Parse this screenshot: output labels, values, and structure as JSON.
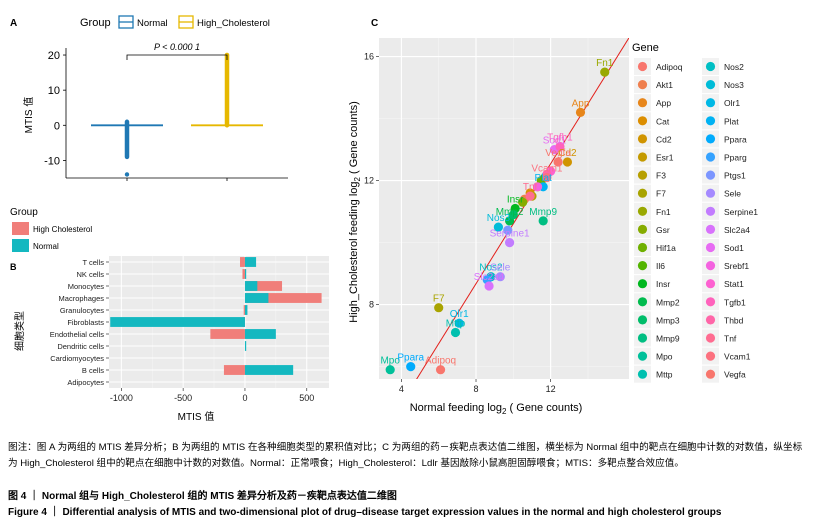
{
  "panelA": {
    "tag": "A",
    "legend_title": "Group",
    "legend_items": [
      {
        "name": "Normal",
        "color": "#1f78b4"
      },
      {
        "name": "High_Cholesterol",
        "color": "#e6b800"
      }
    ],
    "ylabel": "MTIS 值",
    "significance": "P < 0.000 1",
    "chart_data": {
      "type": "boxplot",
      "categories": [
        "Normal",
        "High_Cholesterol"
      ],
      "ylim": [
        -15,
        22
      ],
      "yticks": [
        -10,
        0,
        10,
        20
      ],
      "series": [
        {
          "name": "Normal",
          "median": 0,
          "q1": 0,
          "q3": 0,
          "outliers_min": -9,
          "outliers_max": 1,
          "extreme": -14
        },
        {
          "name": "High_Cholesterol",
          "median": 0,
          "q1": 0,
          "q3": 0,
          "outliers_min": 0,
          "outliers_max": 20,
          "extreme": 20
        }
      ]
    }
  },
  "panelB": {
    "tag": "B",
    "legend_title": "Group",
    "legend_items": [
      {
        "name": "High Cholesterol",
        "color": "#f07e7a"
      },
      {
        "name": "Normal",
        "color": "#14b8c0"
      }
    ],
    "ylabel": "细胞类型",
    "xlabel": "MTIS 值",
    "chart_data": {
      "type": "bar",
      "orientation": "horizontal",
      "categories": [
        "T cells",
        "NK cells",
        "Monocytes",
        "Macrophages",
        "Granulocytes",
        "Fibroblasts",
        "Endothelial cells",
        "Dendritic cells",
        "Cardiomyocytes",
        "B cells",
        "Adipocytes"
      ],
      "xlim": [
        -1100,
        680
      ],
      "xticks": [
        -1000,
        -500,
        0,
        500
      ],
      "xtick_labels": [
        "-1000",
        "-500",
        "0",
        "500"
      ],
      "series": [
        {
          "name": "High Cholesterol",
          "values": [
            -40,
            -20,
            300,
            620,
            -10,
            -20,
            -280,
            0,
            0,
            -170,
            0
          ]
        },
        {
          "name": "Normal",
          "values": [
            90,
            10,
            100,
            190,
            20,
            -1090,
            250,
            10,
            0,
            390,
            0
          ]
        }
      ]
    }
  },
  "panelC": {
    "tag": "C",
    "legend_title": "Gene",
    "xlabel_pre": "Normal feeding log",
    "xlabel_sub": "2",
    "xlabel_post": " ( Gene counts)",
    "ylabel_pre": "High_Cholesterol feeding log",
    "ylabel_sub": "2",
    "ylabel_post": " ( Gene counts)",
    "chart_data": {
      "type": "scatter",
      "xlim": [
        2.8,
        16.2
      ],
      "ylim": [
        5.6,
        16.6
      ],
      "xticks": [
        4,
        8,
        12
      ],
      "yticks": [
        8,
        12,
        16
      ],
      "grid": true,
      "reference_line": "y = x",
      "points": [
        {
          "gene": "Adipoq",
          "x": 6.1,
          "y": 5.9,
          "color": "#f8766d",
          "label": "Adipoq"
        },
        {
          "gene": "Akt1",
          "x": 10.6,
          "y": 11.4,
          "color": "#ef7f4e",
          "label": ""
        },
        {
          "gene": "App",
          "x": 13.6,
          "y": 14.2,
          "color": "#e7861b",
          "label": "App"
        },
        {
          "gene": "Cat",
          "x": 10.9,
          "y": 11.6,
          "color": "#dc8e00",
          "label": ""
        },
        {
          "gene": "Cd2",
          "x": 12.9,
          "y": 12.6,
          "color": "#d09400",
          "label": "Cd2"
        },
        {
          "gene": "Esr1",
          "x": 11.3,
          "y": 11.8,
          "color": "#c49a00",
          "label": ""
        },
        {
          "gene": "F3",
          "x": 11.0,
          "y": 11.5,
          "color": "#b79f00",
          "label": ""
        },
        {
          "gene": "F7",
          "x": 6.0,
          "y": 7.9,
          "color": "#a9a400",
          "label": "F7"
        },
        {
          "gene": "Fn1",
          "x": 14.9,
          "y": 15.5,
          "color": "#99a800",
          "label": "Fn1"
        },
        {
          "gene": "Gsr",
          "x": 10.5,
          "y": 11.3,
          "color": "#86ac00",
          "label": ""
        },
        {
          "gene": "Hif1a",
          "x": 11.5,
          "y": 12.0,
          "color": "#6fb000",
          "label": ""
        },
        {
          "gene": "Il6",
          "x": 11.7,
          "y": 12.1,
          "color": "#53b400",
          "label": ""
        },
        {
          "gene": "Insr",
          "x": 10.1,
          "y": 11.1,
          "color": "#00b81f",
          "label": "Insr"
        },
        {
          "gene": "Mmp2",
          "x": 9.8,
          "y": 10.7,
          "color": "#00bb4e",
          "label": "Mmp2"
        },
        {
          "gene": "Mmp3",
          "x": 10.0,
          "y": 10.9,
          "color": "#00bd6a",
          "label": ""
        },
        {
          "gene": "Mmp9",
          "x": 11.6,
          "y": 10.7,
          "color": "#00be82",
          "label": "Mmp9"
        },
        {
          "gene": "Mpo",
          "x": 3.4,
          "y": 5.9,
          "color": "#00c09a",
          "label": "Mpo"
        },
        {
          "gene": "Mttp",
          "x": 6.9,
          "y": 7.1,
          "color": "#00c0af",
          "label": "Mttp"
        },
        {
          "gene": "Nos2",
          "x": 8.8,
          "y": 8.9,
          "color": "#00bfc4",
          "label": "Nos2"
        },
        {
          "gene": "Nos3",
          "x": 9.2,
          "y": 10.5,
          "color": "#00bcd8",
          "label": "Nos3"
        },
        {
          "gene": "Olr1",
          "x": 7.1,
          "y": 7.4,
          "color": "#00b8e5",
          "label": "Olr1"
        },
        {
          "gene": "Plat",
          "x": 11.6,
          "y": 11.8,
          "color": "#00b2f3",
          "label": "Plat"
        },
        {
          "gene": "Ppara",
          "x": 4.5,
          "y": 6.0,
          "color": "#00abfd",
          "label": "Ppara"
        },
        {
          "gene": "Pparg",
          "x": 8.6,
          "y": 8.8,
          "color": "#35a2ff",
          "label": ""
        },
        {
          "gene": "Ptgs1",
          "x": 9.7,
          "y": 10.4,
          "color": "#7c96ff",
          "label": ""
        },
        {
          "gene": "Sele",
          "x": 9.3,
          "y": 8.9,
          "color": "#a58aff",
          "label": "Sele"
        },
        {
          "gene": "Serpine1",
          "x": 9.8,
          "y": 10.0,
          "color": "#c27cff",
          "label": "Serpine1"
        },
        {
          "gene": "Slc2a4",
          "x": 8.7,
          "y": 8.6,
          "color": "#d872fc",
          "label": "Slc2a4"
        },
        {
          "gene": "Sod1",
          "x": 12.2,
          "y": 13.0,
          "color": "#e76bf3",
          "label": "Sod1"
        },
        {
          "gene": "Srebf1",
          "x": 11.3,
          "y": 11.8,
          "color": "#f463e0",
          "label": ""
        },
        {
          "gene": "Stat1",
          "x": 12.0,
          "y": 12.3,
          "color": "#fd61d1",
          "label": ""
        },
        {
          "gene": "Tgfb1",
          "x": 12.5,
          "y": 13.1,
          "color": "#ff62bc",
          "label": "Tgfb1"
        },
        {
          "gene": "Thbd",
          "x": 11.8,
          "y": 12.2,
          "color": "#ff66a8",
          "label": ""
        },
        {
          "gene": "Tnf",
          "x": 10.9,
          "y": 11.5,
          "color": "#ff6c91",
          "label": "Tnf"
        },
        {
          "gene": "Vcam1",
          "x": 11.8,
          "y": 12.1,
          "color": "#fc717f",
          "label": "Vcam1"
        },
        {
          "gene": "Vegfa",
          "x": 12.4,
          "y": 12.6,
          "color": "#f8766d",
          "label": "Vegfa"
        }
      ]
    }
  },
  "caption": {
    "note": "图注：图 A 为两组的 MTIS 差异分析；B 为两组的 MTIS 在各种细胞类型的累积值对比；C 为两组的药－疾靶点表达值二维图，横坐标为 Normal 组中的靶点在细胞中计数的对数值，纵坐标为 High_Cholesterol 组中的靶点在细胞中计数的对数值。Normal：正常喂食；High_Cholesterol：Ldlr 基因敲除小鼠高胆固醇喂食；MTIS：多靶点整合效应值。",
    "title_zh": "图 4 ｜ Normal 组与 High_Cholesterol 组的 MTIS 差异分析及药－疾靶点表达值二维图",
    "title_en": "Figure 4 ｜ Differential analysis of MTIS and two-dimensional plot of drug–disease target expression values in the normal and high cholesterol groups"
  }
}
